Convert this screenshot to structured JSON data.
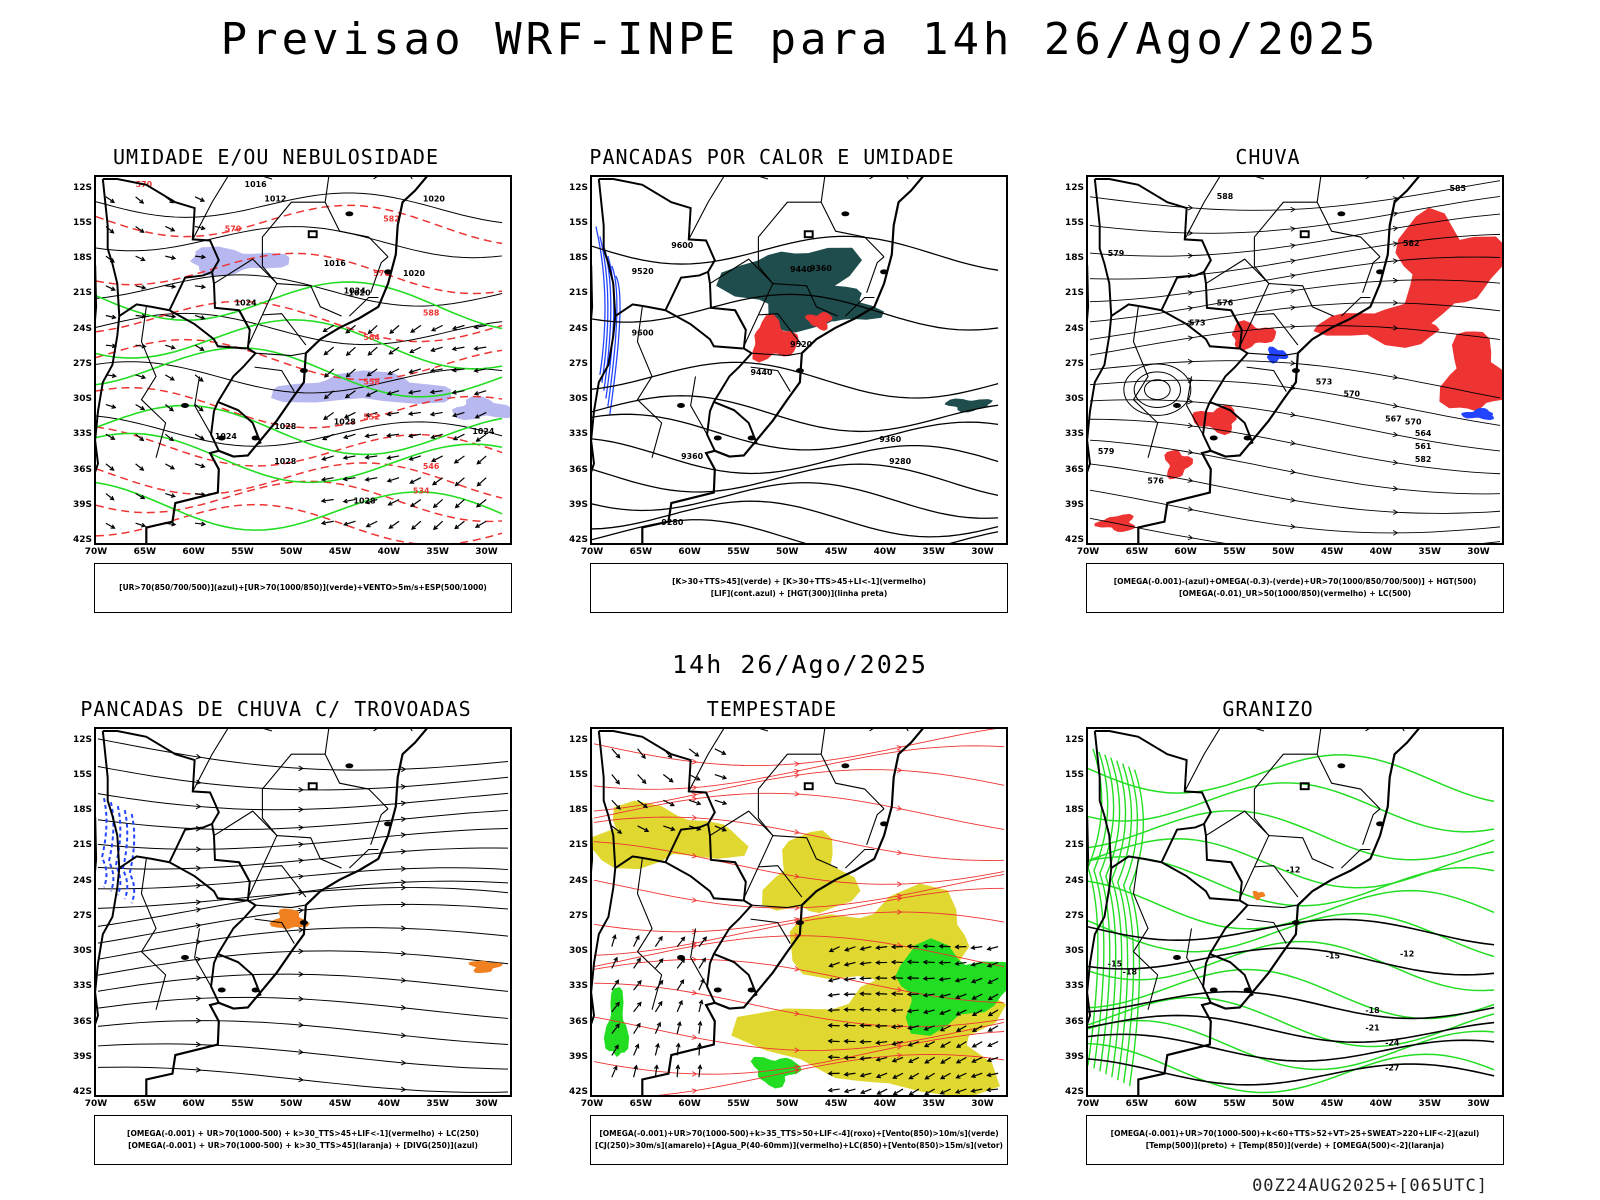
{
  "title": "Previsao WRF-INPE  para 14h 26/Ago/2025",
  "mid_date": "14h 26/Ago/2025",
  "footer": "00Z24AUG2025+[065UTC]",
  "axes": {
    "lat_labels": [
      "12S",
      "15S",
      "18S",
      "21S",
      "24S",
      "27S",
      "30S",
      "33S",
      "36S",
      "39S",
      "42S"
    ],
    "lon_labels": [
      "70W",
      "65W",
      "60W",
      "55W",
      "50W",
      "45W",
      "40W",
      "35W",
      "30W"
    ]
  },
  "panels": [
    {
      "id": "umidade",
      "title": "UMIDADE E/OU NEBULOSIDADE",
      "legend": [
        "[UR>70(850/700/500)](azul)+[UR>70(1000/850)](verde)+VENTO>5m/s+ESP(500/1000)"
      ],
      "labels": [
        "1016",
        "1012",
        "1020",
        "1016",
        "1024",
        "1020",
        "1020",
        "1024",
        "1028",
        "1028",
        "1028",
        "1024",
        "1024",
        "1028",
        "570",
        "570",
        "576",
        "582",
        "588",
        "564",
        "558",
        "552",
        "546",
        "534"
      ]
    },
    {
      "id": "pancadas_calor",
      "title": "PANCADAS POR CALOR E UMIDADE",
      "legend": [
        "[K>30+TTS>45](verde) + [K>30+TTS>45+LI<-1](vermelho)",
        "[LIF](cont.azul) + [HGT(300)](linha preta)"
      ],
      "labels": [
        "9600",
        "9520",
        "9440",
        "9600",
        "9520",
        "9440",
        "9360",
        "9280",
        "9360",
        "9280",
        "9360"
      ]
    },
    {
      "id": "chuva",
      "title": "CHUVA",
      "legend": [
        "[OMEGA(-0.001)-(azul)+OMEGA(-0.3)-(verde)+UR>70(1000/850/700/500)] + HGT(500)",
        "[OMEGA(-0.01)_UR>50(1000/850)(vermelho) + LC(500)"
      ],
      "labels": [
        "585",
        "588",
        "582",
        "579",
        "576",
        "573",
        "570",
        "567",
        "564",
        "561",
        "582",
        "579",
        "576",
        "573",
        "570"
      ]
    },
    {
      "id": "trovoadas",
      "title": "PANCADAS DE CHUVA C/ TROVOADAS",
      "legend": [
        "[OMEGA(-0.001) + UR>70(1000-500) + k>30_TTS>45+LIF<-1](vermelho) + LC(250)",
        "[OMEGA(-0.001) + UR>70(1000-500) + k>30_TTS>45](laranja) + [DIVG(250)](azul)"
      ],
      "labels": []
    },
    {
      "id": "tempestade",
      "title": "TEMPESTADE",
      "legend": [
        "[OMEGA(-0.001)+UR>70(1000-500)+k>35_TTS>50+LIF<-4](roxo)+[Vento(850)>10m/s](verde)",
        "[CJ(250)>30m/s](amarelo)+[Agua_P(40-60mm)](vermelho)+LC(850)+[Vento(850)>15m/s](vetor)"
      ],
      "labels": []
    },
    {
      "id": "granizo",
      "title": "GRANIZO",
      "legend": [
        "[OMEGA(-0.001)+UR>70(1000-500)+k<60+TTS>52+VT>25+SWEAT>220+LIF<-2](azul)",
        "[Temp(500)](preto) + [Temp(850)](verde) + [OMEGA(500)<-2](laranja)"
      ],
      "labels": [
        "-12",
        "-15",
        "-12",
        "-18",
        "-21",
        "-24",
        "-27",
        "-18",
        "-15"
      ]
    }
  ],
  "colors": {
    "red": "#ee3333",
    "green": "#22dd22",
    "blue": "#2244ff",
    "lavender": "#b0b0f0",
    "teal": "#1f4d4d",
    "yellow": "#e0d830",
    "orange": "#f08020",
    "black": "#000000"
  }
}
